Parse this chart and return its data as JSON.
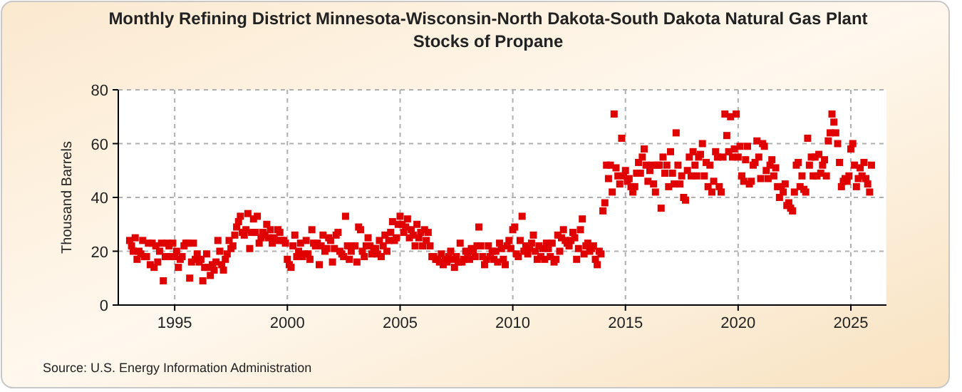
{
  "chart_data": {
    "type": "scatter",
    "title": "Monthly Refining District Minnesota-Wisconsin-North Dakota-South Dakota Natural Gas Plant Stocks of Propane",
    "ylabel": "Thousand Barrels",
    "annotations": [
      "Source: U.S. Energy Information Administration"
    ],
    "xlim": [
      "1992-07",
      "2026-08"
    ],
    "xticks": [
      "1995",
      "2000",
      "2005",
      "2010",
      "2015",
      "2020",
      "2025"
    ],
    "ylim": [
      0,
      80
    ],
    "yticks": [
      0,
      20,
      40,
      60,
      80
    ],
    "grid": true,
    "marker": "square",
    "x": [
      "1993-01",
      "1993-02",
      "1993-03",
      "1993-04",
      "1993-05",
      "1993-06",
      "1993-07",
      "1993-08",
      "1993-09",
      "1993-10",
      "1993-11",
      "1993-12",
      "1994-01",
      "1994-02",
      "1994-03",
      "1994-04",
      "1994-05",
      "1994-06",
      "1994-07",
      "1994-08",
      "1994-09",
      "1994-10",
      "1994-11",
      "1994-12",
      "1995-01",
      "1995-02",
      "1995-03",
      "1995-04",
      "1995-05",
      "1995-06",
      "1995-07",
      "1995-08",
      "1995-09",
      "1995-10",
      "1995-11",
      "1995-12",
      "1996-01",
      "1996-02",
      "1996-03",
      "1996-04",
      "1996-05",
      "1996-06",
      "1996-07",
      "1996-08",
      "1996-09",
      "1996-10",
      "1996-11",
      "1996-12",
      "1997-01",
      "1997-02",
      "1997-03",
      "1997-04",
      "1997-05",
      "1997-06",
      "1997-07",
      "1997-08",
      "1997-09",
      "1997-10",
      "1997-11",
      "1997-12",
      "1998-01",
      "1998-02",
      "1998-03",
      "1998-04",
      "1998-05",
      "1998-06",
      "1998-07",
      "1998-08",
      "1998-09",
      "1998-10",
      "1998-11",
      "1998-12",
      "1999-01",
      "1999-02",
      "1999-03",
      "1999-04",
      "1999-05",
      "1999-06",
      "1999-07",
      "1999-08",
      "1999-09",
      "1999-10",
      "1999-11",
      "1999-12",
      "2000-01",
      "2000-02",
      "2000-03",
      "2000-04",
      "2000-05",
      "2000-06",
      "2000-07",
      "2000-08",
      "2000-09",
      "2000-10",
      "2000-11",
      "2000-12",
      "2001-01",
      "2001-02",
      "2001-03",
      "2001-04",
      "2001-05",
      "2001-06",
      "2001-07",
      "2001-08",
      "2001-09",
      "2001-10",
      "2001-11",
      "2001-12",
      "2002-01",
      "2002-02",
      "2002-03",
      "2002-04",
      "2002-05",
      "2002-06",
      "2002-07",
      "2002-08",
      "2002-09",
      "2002-10",
      "2002-11",
      "2002-12",
      "2003-01",
      "2003-02",
      "2003-03",
      "2003-04",
      "2003-05",
      "2003-06",
      "2003-07",
      "2003-08",
      "2003-09",
      "2003-10",
      "2003-11",
      "2003-12",
      "2004-01",
      "2004-02",
      "2004-03",
      "2004-04",
      "2004-05",
      "2004-06",
      "2004-07",
      "2004-08",
      "2004-09",
      "2004-10",
      "2004-11",
      "2004-12",
      "2005-01",
      "2005-02",
      "2005-03",
      "2005-04",
      "2005-05",
      "2005-06",
      "2005-07",
      "2005-08",
      "2005-09",
      "2005-10",
      "2005-11",
      "2005-12",
      "2006-01",
      "2006-02",
      "2006-03",
      "2006-04",
      "2006-05",
      "2006-06",
      "2006-07",
      "2006-08",
      "2006-09",
      "2006-10",
      "2006-11",
      "2006-12",
      "2007-01",
      "2007-02",
      "2007-03",
      "2007-04",
      "2007-05",
      "2007-06",
      "2007-07",
      "2007-08",
      "2007-09",
      "2007-10",
      "2007-11",
      "2007-12",
      "2008-01",
      "2008-02",
      "2008-03",
      "2008-04",
      "2008-05",
      "2008-06",
      "2008-07",
      "2008-08",
      "2008-09",
      "2008-10",
      "2008-11",
      "2008-12",
      "2009-01",
      "2009-02",
      "2009-03",
      "2009-04",
      "2009-05",
      "2009-06",
      "2009-07",
      "2009-08",
      "2009-09",
      "2009-10",
      "2009-11",
      "2009-12",
      "2010-01",
      "2010-02",
      "2010-03",
      "2010-04",
      "2010-05",
      "2010-06",
      "2010-07",
      "2010-08",
      "2010-09",
      "2010-10",
      "2010-11",
      "2010-12",
      "2011-01",
      "2011-02",
      "2011-03",
      "2011-04",
      "2011-05",
      "2011-06",
      "2011-07",
      "2011-08",
      "2011-09",
      "2011-10",
      "2011-11",
      "2011-12",
      "2012-01",
      "2012-02",
      "2012-03",
      "2012-04",
      "2012-05",
      "2012-06",
      "2012-07",
      "2012-08",
      "2012-09",
      "2012-10",
      "2012-11",
      "2012-12",
      "2013-01",
      "2013-02",
      "2013-03",
      "2013-04",
      "2013-05",
      "2013-06",
      "2013-07",
      "2013-08",
      "2013-09",
      "2013-10",
      "2013-11",
      "2013-12",
      "2014-01",
      "2014-02",
      "2014-03",
      "2014-04",
      "2014-05",
      "2014-06",
      "2014-07",
      "2014-08",
      "2014-09",
      "2014-10",
      "2014-11",
      "2014-12",
      "2015-01",
      "2015-02",
      "2015-03",
      "2015-04",
      "2015-05",
      "2015-06",
      "2015-07",
      "2015-08",
      "2015-09",
      "2015-10",
      "2015-11",
      "2015-12",
      "2016-01",
      "2016-02",
      "2016-03",
      "2016-04",
      "2016-05",
      "2016-06",
      "2016-07",
      "2016-08",
      "2016-09",
      "2016-10",
      "2016-11",
      "2016-12",
      "2017-01",
      "2017-02",
      "2017-03",
      "2017-04",
      "2017-05",
      "2017-06",
      "2017-07",
      "2017-08",
      "2017-09",
      "2017-10",
      "2017-11",
      "2017-12",
      "2018-01",
      "2018-02",
      "2018-03",
      "2018-04",
      "2018-05",
      "2018-06",
      "2018-07",
      "2018-08",
      "2018-09",
      "2018-10",
      "2018-11",
      "2018-12",
      "2019-01",
      "2019-02",
      "2019-03",
      "2019-04",
      "2019-05",
      "2019-06",
      "2019-07",
      "2019-08",
      "2019-09",
      "2019-10",
      "2019-11",
      "2019-12",
      "2020-01",
      "2020-02",
      "2020-03",
      "2020-04",
      "2020-05",
      "2020-06",
      "2020-07",
      "2020-08",
      "2020-09",
      "2020-10",
      "2020-11",
      "2020-12",
      "2021-01",
      "2021-02",
      "2021-03",
      "2021-04",
      "2021-05",
      "2021-06",
      "2021-07",
      "2021-08",
      "2021-09",
      "2021-10",
      "2021-11",
      "2021-12",
      "2022-01",
      "2022-02",
      "2022-03",
      "2022-04",
      "2022-05",
      "2022-06",
      "2022-07",
      "2022-08",
      "2022-09",
      "2022-10",
      "2022-11",
      "2022-12",
      "2023-01",
      "2023-02",
      "2023-03",
      "2023-04",
      "2023-05",
      "2023-06",
      "2023-07",
      "2023-08",
      "2023-09",
      "2023-10",
      "2023-11",
      "2023-12",
      "2024-01",
      "2024-02",
      "2024-03",
      "2024-04",
      "2024-05",
      "2024-06",
      "2024-07",
      "2024-08",
      "2024-09",
      "2024-10",
      "2024-11",
      "2024-12",
      "2025-01",
      "2025-02",
      "2025-03",
      "2025-04",
      "2025-05",
      "2025-06",
      "2025-07",
      "2025-08",
      "2025-09",
      "2025-10",
      "2025-11",
      "2025-12"
    ],
    "series": [
      {
        "color": "#e00000",
        "values": [
          24,
          22,
          20,
          25,
          17,
          20,
          19,
          24,
          18,
          18,
          23,
          15,
          23,
          14,
          22,
          16,
          20,
          23,
          9,
          18,
          23,
          22,
          18,
          23,
          18,
          20,
          14,
          17,
          18,
          22,
          23,
          23,
          10,
          16,
          23,
          17,
          19,
          16,
          17,
          9,
          14,
          19,
          14,
          11,
          15,
          13,
          16,
          24,
          20,
          15,
          13,
          17,
          19,
          24,
          21,
          22,
          26,
          29,
          31,
          33,
          27,
          26,
          28,
          34,
          21,
          27,
          32,
          27,
          33,
          23,
          25,
          27,
          26,
          30,
          25,
          28,
          23,
          25,
          24,
          28,
          27,
          24,
          24,
          23,
          17,
          15,
          14,
          22,
          26,
          18,
          20,
          23,
          18,
          19,
          24,
          19,
          17,
          28,
          23,
          22,
          23,
          15,
          22,
          26,
          20,
          21,
          25,
          24,
          16,
          21,
          26,
          27,
          20,
          19,
          18,
          33,
          22,
          17,
          20,
          22,
          22,
          16,
          29,
          28,
          20,
          18,
          22,
          25,
          22,
          19,
          21,
          21,
          19,
          24,
          18,
          22,
          26,
          20,
          24,
          27,
          31,
          24,
          25,
          30,
          33,
          30,
          27,
          29,
          32,
          25,
          28,
          26,
          22,
          30,
          25,
          27,
          22,
          28,
          24,
          27,
          22,
          18,
          18,
          17,
          17,
          16,
          19,
          15,
          17,
          16,
          18,
          20,
          17,
          14,
          18,
          16,
          23,
          16,
          17,
          20,
          19,
          17,
          21,
          20,
          18,
          22,
          29,
          22,
          18,
          15,
          17,
          22,
          18,
          20,
          17,
          20,
          16,
          23,
          21,
          17,
          15,
          22,
          24,
          21,
          28,
          29,
          19,
          18,
          24,
          33,
          20,
          22,
          19,
          21,
          23,
          26,
          20,
          17,
          22,
          18,
          21,
          17,
          23,
          21,
          18,
          23,
          16,
          17,
          26,
          20,
          25,
          28,
          24,
          23,
          22,
          24,
          27,
          25,
          17,
          21,
          28,
          32,
          19,
          22,
          23,
          20,
          21,
          22,
          17,
          15,
          20,
          19,
          35,
          38,
          52,
          47,
          52,
          42,
          71,
          51,
          48,
          45,
          62,
          48,
          50,
          46,
          47,
          44,
          42,
          44,
          49,
          53,
          49,
          55,
          58,
          52,
          46,
          50,
          52,
          45,
          42,
          52,
          52,
          36,
          55,
          49,
          52,
          44,
          57,
          49,
          45,
          64,
          52,
          45,
          48,
          40,
          39,
          50,
          55,
          48,
          57,
          52,
          48,
          55,
          56,
          60,
          48,
          53,
          44,
          52,
          42,
          46,
          57,
          55,
          44,
          42,
          55,
          71,
          63,
          57,
          70,
          55,
          58,
          71,
          55,
          59,
          48,
          46,
          54,
          59,
          45,
          46,
          52,
          53,
          61,
          55,
          47,
          60,
          59,
          50,
          47,
          52,
          54,
          48,
          51,
          44,
          40,
          44,
          42,
          45,
          37,
          38,
          36,
          35,
          42,
          52,
          53,
          44,
          48,
          43,
          42,
          62,
          52,
          55,
          48,
          55,
          48,
          56,
          49,
          52,
          54,
          48,
          61,
          64,
          71,
          68,
          64,
          60,
          53,
          44,
          46,
          47,
          46,
          48,
          58,
          60,
          52,
          44,
          47,
          51,
          48,
          53,
          47,
          45,
          42,
          52
        ]
      }
    ]
  }
}
